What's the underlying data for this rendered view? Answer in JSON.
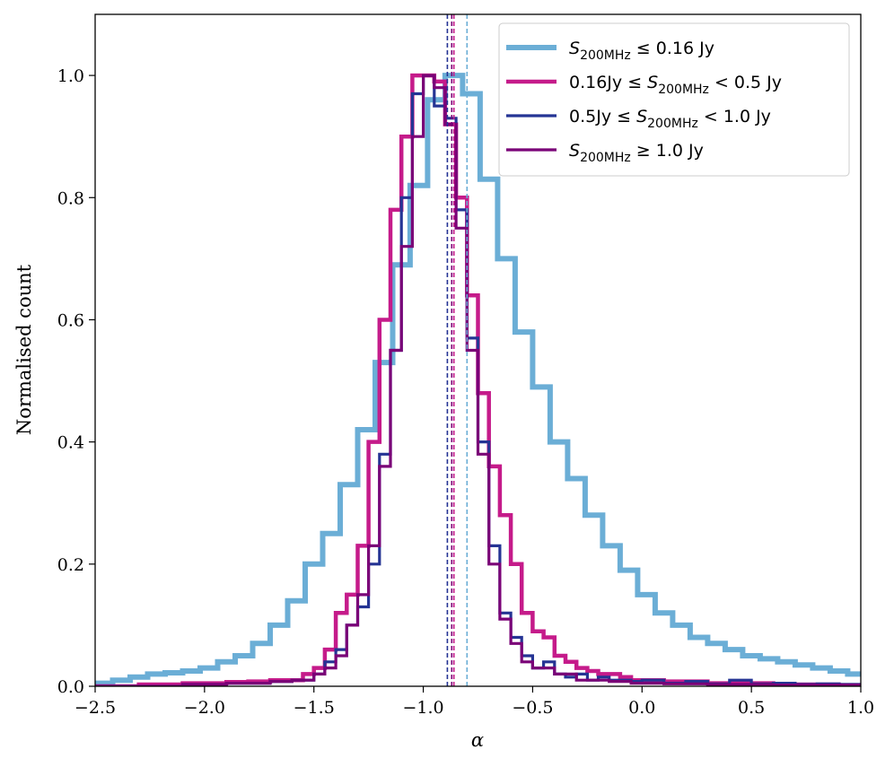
{
  "chart_data": {
    "type": "histogram-step",
    "xlabel": "α",
    "ylabel": "Normalised count",
    "xlim": [
      -2.5,
      1.0
    ],
    "ylim": [
      0.0,
      1.1
    ],
    "xticks": [
      -2.5,
      -2.0,
      -1.5,
      -1.0,
      -0.5,
      0.0,
      0.5,
      1.0
    ],
    "xtick_labels": [
      "−2.5",
      "−2.0",
      "−1.5",
      "−1.0",
      "−0.5",
      "0.0",
      "0.5",
      "1.0"
    ],
    "yticks": [
      0.0,
      0.2,
      0.4,
      0.6,
      0.8,
      1.0
    ],
    "ytick_labels": [
      "0.0",
      "0.2",
      "0.4",
      "0.6",
      "0.8",
      "1.0"
    ],
    "legend_position": "top-right",
    "series": [
      {
        "name": "S200MHz ≤ 0.16 Jy",
        "legend_parts": [
          "S",
          "200MHz",
          " ≤ 0.16 Jy"
        ],
        "color": "#6baed6",
        "width": "thick",
        "median": -0.8,
        "x": [
          -2.5,
          -2.42,
          -2.34,
          -2.26,
          -2.18,
          -2.1,
          -2.02,
          -1.94,
          -1.86,
          -1.78,
          -1.7,
          -1.62,
          -1.54,
          -1.46,
          -1.38,
          -1.3,
          -1.22,
          -1.14,
          -1.06,
          -0.98,
          -0.9,
          -0.82,
          -0.74,
          -0.66,
          -0.58,
          -0.5,
          -0.42,
          -0.34,
          -0.26,
          -0.18,
          -0.1,
          -0.02,
          0.06,
          0.14,
          0.22,
          0.3,
          0.38,
          0.46,
          0.54,
          0.62,
          0.7,
          0.78,
          0.86,
          0.94,
          1.0
        ],
        "y": [
          0.005,
          0.01,
          0.015,
          0.02,
          0.022,
          0.025,
          0.03,
          0.04,
          0.05,
          0.07,
          0.1,
          0.14,
          0.2,
          0.25,
          0.33,
          0.42,
          0.53,
          0.69,
          0.82,
          0.96,
          1.0,
          0.97,
          0.83,
          0.7,
          0.58,
          0.49,
          0.4,
          0.34,
          0.28,
          0.23,
          0.19,
          0.15,
          0.12,
          0.1,
          0.08,
          0.07,
          0.06,
          0.05,
          0.045,
          0.04,
          0.035,
          0.03,
          0.025,
          0.02,
          0.02
        ]
      },
      {
        "name": "0.16Jy ≤ S200MHz < 0.5 Jy",
        "legend_parts": [
          "0.16Jy ≤ S",
          "200MHz",
          " < 0.5 Jy"
        ],
        "color": "#c51b8a",
        "width": "medium",
        "median": -0.86,
        "x": [
          -2.5,
          -2.4,
          -2.3,
          -2.2,
          -2.1,
          -2.0,
          -1.9,
          -1.8,
          -1.7,
          -1.6,
          -1.55,
          -1.5,
          -1.45,
          -1.4,
          -1.35,
          -1.3,
          -1.25,
          -1.2,
          -1.15,
          -1.1,
          -1.05,
          -1.0,
          -0.95,
          -0.9,
          -0.85,
          -0.8,
          -0.75,
          -0.7,
          -0.65,
          -0.6,
          -0.55,
          -0.5,
          -0.45,
          -0.4,
          -0.35,
          -0.3,
          -0.25,
          -0.2,
          -0.15,
          -0.1,
          -0.05,
          0.0,
          0.1,
          0.2,
          0.3,
          0.4,
          0.5,
          0.6,
          0.7,
          0.8,
          0.9,
          1.0
        ],
        "y": [
          0.0,
          0.0,
          0.003,
          0.003,
          0.005,
          0.005,
          0.007,
          0.008,
          0.01,
          0.01,
          0.02,
          0.03,
          0.06,
          0.12,
          0.15,
          0.23,
          0.4,
          0.6,
          0.78,
          0.9,
          1.0,
          1.0,
          0.99,
          0.92,
          0.8,
          0.64,
          0.48,
          0.36,
          0.28,
          0.2,
          0.12,
          0.09,
          0.08,
          0.05,
          0.04,
          0.03,
          0.025,
          0.02,
          0.02,
          0.015,
          0.01,
          0.01,
          0.008,
          0.008,
          0.005,
          0.005,
          0.005,
          0.003,
          0.003,
          0.003,
          0.002,
          0.002
        ]
      },
      {
        "name": "0.5Jy ≤ S200MHz < 1.0 Jy",
        "legend_parts": [
          "0.5Jy ≤ S",
          "200MHz",
          " < 1.0 Jy"
        ],
        "color": "#253494",
        "width": "thin",
        "median": -0.89,
        "x": [
          -2.5,
          -2.3,
          -2.1,
          -1.9,
          -1.7,
          -1.6,
          -1.5,
          -1.45,
          -1.4,
          -1.35,
          -1.3,
          -1.25,
          -1.2,
          -1.15,
          -1.1,
          -1.05,
          -1.0,
          -0.95,
          -0.9,
          -0.85,
          -0.8,
          -0.75,
          -0.7,
          -0.65,
          -0.6,
          -0.55,
          -0.5,
          -0.45,
          -0.4,
          -0.35,
          -0.3,
          -0.25,
          -0.2,
          -0.15,
          -0.1,
          -0.05,
          0.0,
          0.1,
          0.2,
          0.3,
          0.4,
          0.5,
          0.6,
          0.7,
          0.8,
          0.9,
          1.0
        ],
        "y": [
          0.0,
          0.0,
          0.003,
          0.005,
          0.008,
          0.01,
          0.02,
          0.04,
          0.06,
          0.1,
          0.13,
          0.2,
          0.38,
          0.55,
          0.8,
          0.97,
          1.0,
          0.95,
          0.93,
          0.78,
          0.57,
          0.4,
          0.23,
          0.12,
          0.08,
          0.05,
          0.03,
          0.04,
          0.02,
          0.015,
          0.02,
          0.01,
          0.015,
          0.01,
          0.01,
          0.008,
          0.01,
          0.005,
          0.008,
          0.004,
          0.01,
          0.004,
          0.005,
          0.003,
          0.004,
          0.003,
          0.003
        ]
      },
      {
        "name": "S200MHz ≥ 1.0 Jy",
        "legend_parts": [
          "S",
          "200MHz",
          " ≥ 1.0 Jy"
        ],
        "color": "#7a0177",
        "width": "thin",
        "median": -0.87,
        "x": [
          -2.5,
          -2.3,
          -2.1,
          -1.9,
          -1.7,
          -1.6,
          -1.5,
          -1.45,
          -1.4,
          -1.35,
          -1.3,
          -1.25,
          -1.2,
          -1.15,
          -1.1,
          -1.05,
          -1.0,
          -0.95,
          -0.9,
          -0.85,
          -0.8,
          -0.75,
          -0.7,
          -0.65,
          -0.6,
          -0.55,
          -0.5,
          -0.45,
          -0.4,
          -0.35,
          -0.3,
          -0.25,
          -0.2,
          -0.15,
          -0.1,
          -0.05,
          0.0,
          0.1,
          0.2,
          0.3,
          0.4,
          0.5,
          0.6,
          0.7,
          0.8,
          0.9,
          1.0
        ],
        "y": [
          0.0,
          0.0,
          0.003,
          0.005,
          0.008,
          0.01,
          0.02,
          0.03,
          0.05,
          0.1,
          0.15,
          0.23,
          0.36,
          0.55,
          0.72,
          0.9,
          1.0,
          0.98,
          0.92,
          0.75,
          0.55,
          0.38,
          0.2,
          0.11,
          0.07,
          0.04,
          0.03,
          0.03,
          0.02,
          0.02,
          0.01,
          0.01,
          0.01,
          0.008,
          0.008,
          0.005,
          0.005,
          0.004,
          0.004,
          0.003,
          0.003,
          0.003,
          0.002,
          0.002,
          0.002,
          0.002,
          0.002
        ]
      }
    ]
  }
}
